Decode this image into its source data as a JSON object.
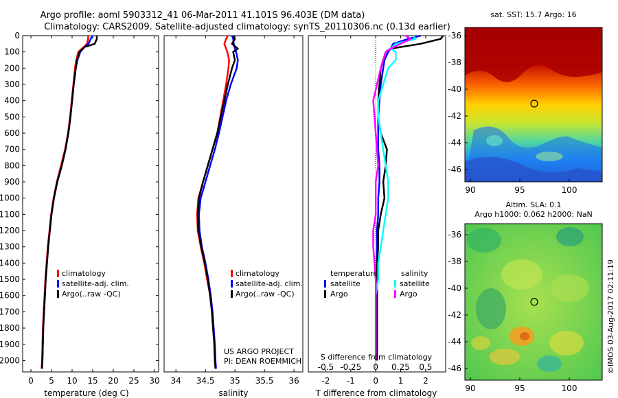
{
  "title_line1": "Argo profile: aoml 5903312_41 06-Mar-2011 41.101S 96.403E (DM data)",
  "title_line2": "Climatology: CARS2009. Satellite-adjusted climatology: synTS_20110306.nc (0.13d earlier)",
  "project_line1": "US ARGO PROJECT",
  "project_line2": "PI: DEAN ROEMMICH",
  "credit": "©IMOS 03-Aug-2017 02:11:19",
  "colors": {
    "climatology": "#ff0000",
    "satellite": "#0000ff",
    "argo": "#000000",
    "sal_satellite": "#00ffff",
    "sal_argo": "#ff00ff"
  },
  "depth_ticks": [
    "0",
    "100",
    "200",
    "300",
    "400",
    "500",
    "600",
    "700",
    "800",
    "900",
    "1000",
    "1100",
    "1200",
    "1300",
    "1400",
    "1500",
    "1600",
    "1700",
    "1800",
    "1900",
    "2000"
  ],
  "legend_labels": {
    "climatology": "climatology",
    "satellite": "satellite-adj. clim.",
    "argo": "Argo(..raw -QC)"
  },
  "diff_legend": {
    "temperature_header": "temperature",
    "salinity_header": "salinity",
    "satellite": "satellite",
    "argo": "Argo"
  },
  "map1": {
    "title": "sat. SST: 15.7 Argo: 16",
    "xticks": [
      "90",
      "95",
      "100"
    ],
    "yticks": [
      "-36",
      "-38",
      "-40",
      "-42",
      "-44",
      "-46"
    ]
  },
  "map2": {
    "title_line1": "Altim. SLA: 0.1",
    "title_line2": "Argo h1000: 0.062 h2000: NaN",
    "xticks": [
      "90",
      "95",
      "100"
    ],
    "yticks": [
      "-36",
      "-38",
      "-40",
      "-42",
      "-44",
      "-46"
    ]
  },
  "chart_data": [
    {
      "type": "line",
      "xlabel": "temperature (deg C)",
      "ylabel": "",
      "xlim": [
        -2,
        31
      ],
      "ylim": [
        2070,
        0
      ],
      "xticks": [
        "0",
        "5",
        "10",
        "15",
        "20",
        "25",
        "30"
      ],
      "depth": [
        0,
        20,
        50,
        70,
        100,
        150,
        200,
        300,
        400,
        500,
        600,
        700,
        800,
        900,
        1000,
        1100,
        1200,
        1300,
        1400,
        1500,
        1600,
        1700,
        1800,
        1900,
        2000,
        2050
      ],
      "series": [
        {
          "name": "climatology",
          "color": "#ff0000",
          "values": [
            13.9,
            13.9,
            13.6,
            12.8,
            11.5,
            11.0,
            10.7,
            10.3,
            9.9,
            9.5,
            9.0,
            8.3,
            7.3,
            6.3,
            5.5,
            4.9,
            4.5,
            4.1,
            3.8,
            3.5,
            3.3,
            3.1,
            2.9,
            2.8,
            2.7,
            2.6
          ]
        },
        {
          "name": "satellite-adj. clim.",
          "color": "#0000ff",
          "values": [
            15.0,
            14.5,
            14.0,
            13.0,
            12.0,
            11.3,
            10.9,
            10.4,
            10.0,
            9.6,
            9.1,
            8.4,
            7.5,
            6.4,
            5.6,
            5.0,
            4.6,
            4.2,
            3.9,
            3.6,
            3.4,
            3.2,
            3.0,
            2.9,
            2.8,
            2.7
          ]
        },
        {
          "name": "Argo(..raw -QC)",
          "color": "#000000",
          "values": [
            16.0,
            16.0,
            15.5,
            13.0,
            11.8,
            11.2,
            10.9,
            10.4,
            10.0,
            9.6,
            9.1,
            8.4,
            7.5,
            6.4,
            5.6,
            5.0,
            4.6,
            4.2,
            3.9,
            3.6,
            3.4,
            3.2,
            3.0,
            2.9,
            2.8,
            2.7
          ]
        }
      ]
    },
    {
      "type": "line",
      "xlabel": "salinity",
      "ylabel": "",
      "xlim": [
        33.8,
        36.15
      ],
      "ylim": [
        2070,
        0
      ],
      "xticks": [
        "34",
        "34.5",
        "35",
        "35.5",
        "36"
      ],
      "depth": [
        0,
        20,
        50,
        80,
        100,
        150,
        200,
        300,
        400,
        500,
        600,
        700,
        800,
        900,
        1000,
        1100,
        1200,
        1300,
        1400,
        1500,
        1600,
        1700,
        1800,
        1900,
        2000,
        2050
      ],
      "series": [
        {
          "name": "climatology",
          "color": "#ff0000",
          "values": [
            34.88,
            34.85,
            34.82,
            34.85,
            34.87,
            34.9,
            34.89,
            34.85,
            34.8,
            34.75,
            34.7,
            34.62,
            34.54,
            34.46,
            34.38,
            34.36,
            34.37,
            34.42,
            34.48,
            34.53,
            34.58,
            34.61,
            34.63,
            34.65,
            34.66,
            34.67
          ]
        },
        {
          "name": "satellite-adj. clim.",
          "color": "#0000ff",
          "values": [
            34.95,
            34.97,
            34.98,
            35.0,
            35.02,
            35.05,
            35.03,
            34.93,
            34.85,
            34.79,
            34.73,
            34.66,
            34.58,
            34.5,
            34.42,
            34.39,
            34.4,
            34.44,
            34.5,
            34.55,
            34.59,
            34.62,
            34.64,
            34.66,
            34.67,
            34.68
          ]
        },
        {
          "name": "Argo(..raw -QC)",
          "color": "#000000",
          "values": [
            34.98,
            35.0,
            34.95,
            35.05,
            34.97,
            35.0,
            34.95,
            34.88,
            34.82,
            34.76,
            34.7,
            34.62,
            34.54,
            34.46,
            34.39,
            34.37,
            34.38,
            34.43,
            34.49,
            34.54,
            34.58,
            34.61,
            34.63,
            34.65,
            34.66,
            34.67
          ]
        }
      ]
    },
    {
      "type": "line",
      "xlabel": "T difference from climatology",
      "ylabel": "",
      "top_label": "S difference from climatology",
      "xlim": [
        -2.7,
        2.8
      ],
      "ylim": [
        2070,
        0
      ],
      "xticks": [
        "-2",
        "-1",
        "0",
        "1",
        "2"
      ],
      "xticks_top": [
        "-0.5",
        "-0.25",
        "0",
        "0.25",
        "0.5"
      ],
      "depth": [
        0,
        20,
        50,
        80,
        100,
        150,
        200,
        300,
        400,
        500,
        600,
        700,
        800,
        900,
        1000,
        1100,
        1200,
        1300,
        1400,
        1500,
        1600,
        1700,
        1800,
        1900,
        2000
      ],
      "series": [
        {
          "name": "temperature satellite",
          "color": "#0000ff",
          "values": [
            1.8,
            1.3,
            0.7,
            0.6,
            0.5,
            0.35,
            0.3,
            0.2,
            0.15,
            0.1,
            0.1,
            0.1,
            0.15,
            0.15,
            0.1,
            0.1,
            0.05,
            0.05,
            0.05,
            0.05,
            0.05,
            0.05,
            0.05,
            0.05,
            0.05
          ]
        },
        {
          "name": "temperature Argo",
          "color": "#000000",
          "values": [
            2.7,
            2.6,
            1.8,
            0.6,
            0.4,
            0.3,
            0.2,
            0.15,
            0.1,
            0.1,
            0.2,
            0.45,
            0.4,
            0.3,
            0.35,
            0.2,
            0.1,
            0.1,
            0.05,
            0.05,
            0.05,
            0.05,
            0.05,
            0.05,
            0.05
          ]
        },
        {
          "name": "salinity satellite",
          "color": "#00ffff",
          "values": [
            1.5,
            1.6,
            0.8,
            0.6,
            0.8,
            0.8,
            0.5,
            0.3,
            0.1,
            0.1,
            0.2,
            0.3,
            0.4,
            0.5,
            0.5,
            0.4,
            0.3,
            0.2,
            0.1,
            0.1,
            0.0,
            0.0,
            0.0,
            0.0,
            0.0
          ]
        },
        {
          "name": "salinity Argo",
          "color": "#ff00ff",
          "values": [
            1.2,
            1.4,
            1.0,
            0.6,
            0.4,
            0.3,
            0.2,
            0.05,
            -0.1,
            -0.05,
            0.0,
            0.05,
            0.1,
            0.0,
            0.0,
            0.0,
            -0.1,
            -0.1,
            -0.05,
            0.0,
            0.0,
            0.0,
            0.0,
            0.0,
            0.0
          ]
        }
      ]
    }
  ]
}
